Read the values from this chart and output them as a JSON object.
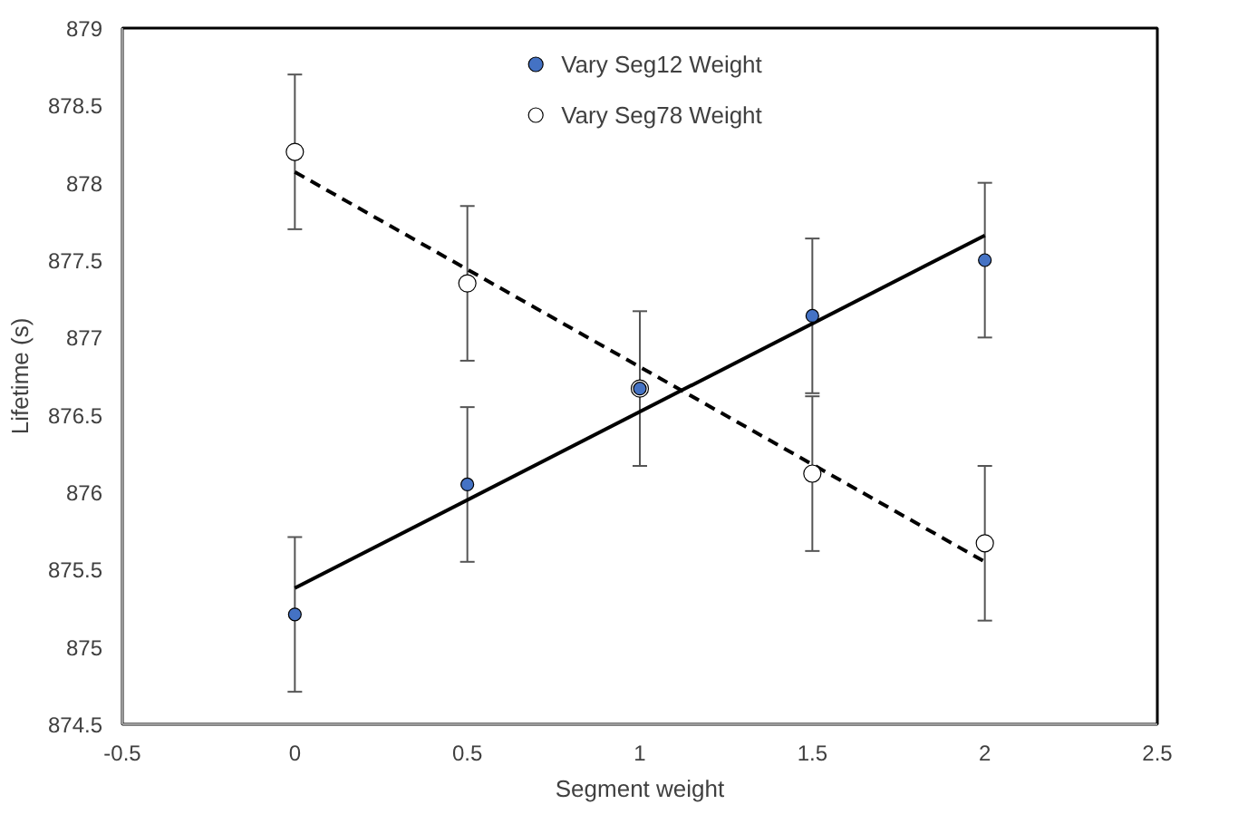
{
  "chart_data": {
    "type": "scatter",
    "xlabel": "Segment weight",
    "ylabel": "Lifetime (s)",
    "xlim": [
      -0.5,
      2.5
    ],
    "xticks": [
      -0.5,
      0,
      0.5,
      1,
      1.5,
      2,
      2.5
    ],
    "ylim": [
      874.5,
      879
    ],
    "yticks": [
      874.5,
      875,
      875.5,
      876,
      876.5,
      877,
      877.5,
      878,
      878.5,
      879
    ],
    "grid": false,
    "legend": "top",
    "marker": "circle",
    "series": [
      {
        "name": "Vary Seg12 Weight",
        "color": "#4472c4",
        "x": [
          0,
          0.5,
          1,
          1.5,
          2
        ],
        "values": [
          875.21,
          876.05,
          876.67,
          877.14,
          877.5
        ],
        "errors": [
          0.5,
          0.5,
          0.5,
          0.5,
          0.5
        ]
      },
      {
        "name": "Vary Seg78 Weight",
        "color": "#ffffff",
        "x": [
          0,
          0.5,
          1,
          1.5,
          2
        ],
        "values": [
          878.2,
          877.35,
          876.67,
          876.12,
          875.67
        ],
        "errors": [
          0.5,
          0.5,
          null,
          0.5,
          0.5
        ]
      },
      {
        "type": "line",
        "color": "#000000",
        "marker": "none",
        "line_style": "solid",
        "x": [
          0,
          2
        ],
        "values": [
          875.38,
          877.66
        ]
      },
      {
        "type": "line",
        "color": "#000000",
        "marker": "none",
        "line_style": "dashed",
        "x": [
          0,
          2
        ],
        "values": [
          878.07,
          875.55
        ]
      }
    ]
  }
}
